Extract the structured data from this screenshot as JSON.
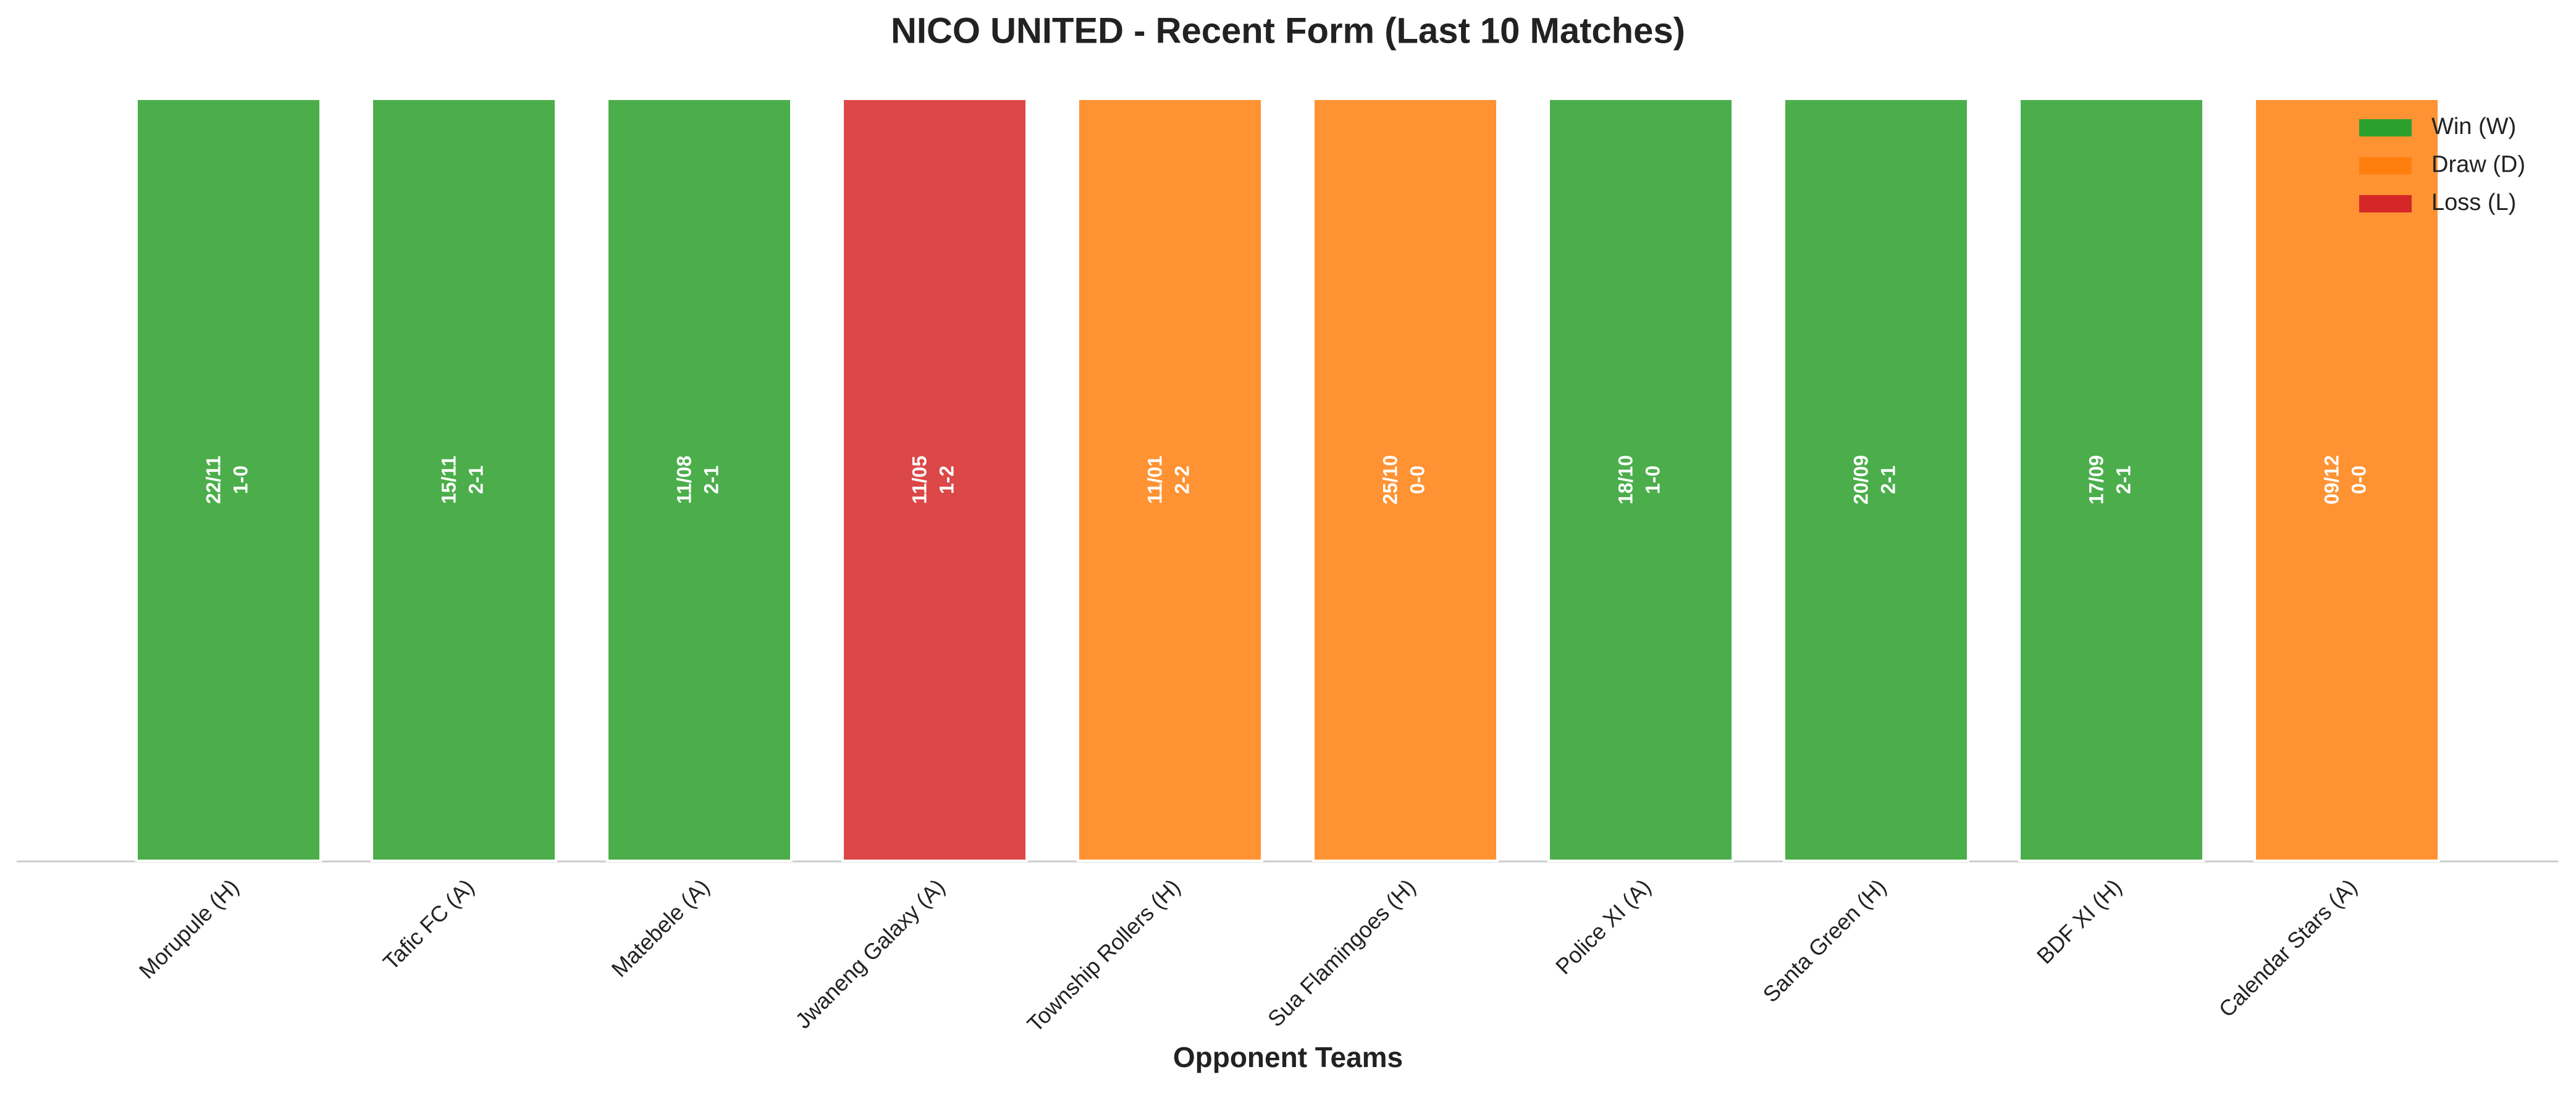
{
  "chart_data": {
    "type": "bar",
    "title": "NICO UNITED - Recent Form (Last 10 Matches)",
    "x_label": "Opponent Teams",
    "categories": [
      "Morupule (H)",
      "Tafic FC (A)",
      "Matebele (A)",
      "Jwaneng Galaxy (A)",
      "Township Rollers (H)",
      "Sua Flamingoes (H)",
      "Police XI (A)",
      "Santa Green (H)",
      "BDF XI (H)",
      "Calendar Stars (A)"
    ],
    "dates": [
      "22/11",
      "15/11",
      "11/08",
      "11/05",
      "11/01",
      "25/10",
      "18/10",
      "20/09",
      "17/09",
      "09/12"
    ],
    "scores": [
      "1-0",
      "2-1",
      "2-1",
      "1-2",
      "2-2",
      "0-0",
      "1-0",
      "2-1",
      "2-1",
      "0-0"
    ],
    "series": [
      {
        "name": "Win (W)",
        "color": "#2ca02c",
        "values": [
          1,
          1,
          1,
          null,
          null,
          null,
          1,
          1,
          1,
          null
        ]
      },
      {
        "name": "Draw (D)",
        "color": "#ff7f0e",
        "values": [
          null,
          null,
          null,
          null,
          1,
          1,
          null,
          null,
          null,
          1
        ]
      },
      {
        "name": "Loss (L)",
        "color": "#d62728",
        "values": [
          null,
          null,
          null,
          1,
          null,
          null,
          null,
          null,
          null,
          null
        ]
      }
    ],
    "ylim": [
      0,
      1
    ],
    "legend": "upper right"
  }
}
